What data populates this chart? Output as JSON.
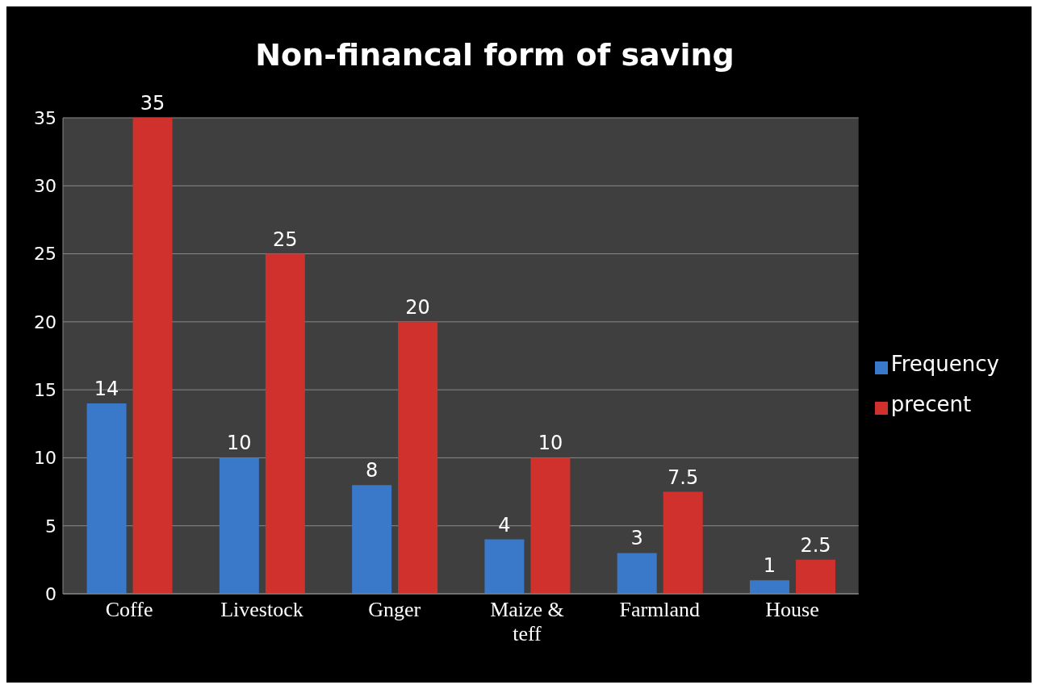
{
  "chart_data": {
    "type": "bar",
    "title": "Non-financal form of saving",
    "categories": [
      "Coffe",
      "Livestock",
      "Gnger",
      "Maize & teff",
      "Farmland",
      "House"
    ],
    "series": [
      {
        "name": "Frequency",
        "color": "#3a78c9",
        "values": [
          14,
          10,
          8,
          4,
          3,
          1
        ]
      },
      {
        "name": "precent",
        "color": "#d0312d",
        "values": [
          35,
          25,
          20,
          10,
          7.5,
          2.5
        ]
      }
    ],
    "ylim": [
      0,
      35
    ],
    "yticks": [
      0,
      5,
      10,
      15,
      20,
      25,
      30,
      35
    ],
    "grid": "y",
    "legend": "right",
    "data_labels": true
  }
}
